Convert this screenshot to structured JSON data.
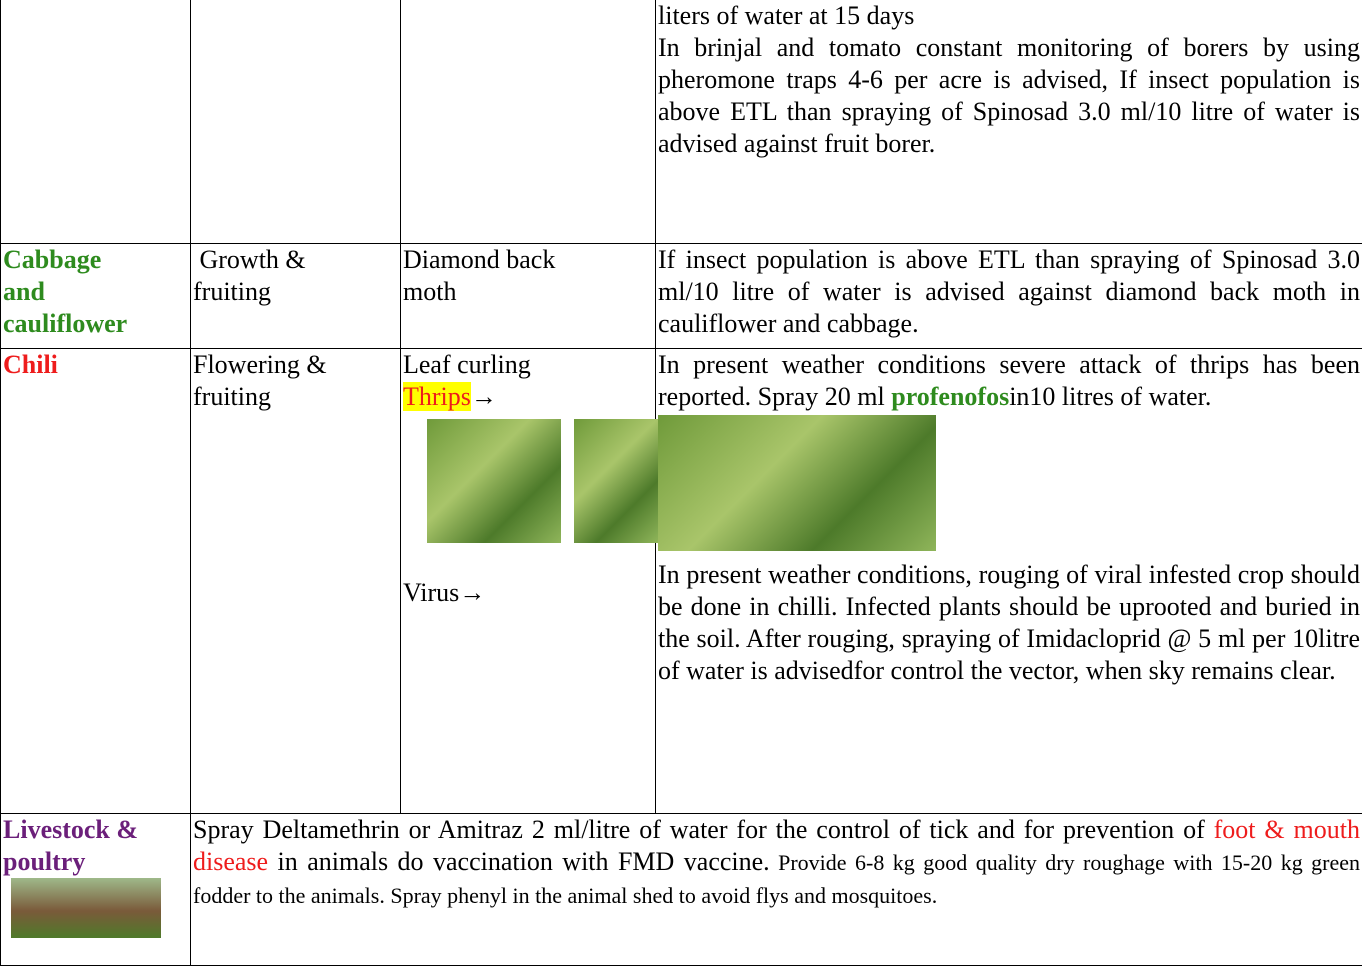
{
  "table": {
    "rows": [
      {
        "advice": [
          "liters of water at 15 days",
          "In brinjal and tomato constant monitoring of borers by using pheromone traps 4-6 per acre is advised, If insect population is above ETL than spraying of Spinosad 3.0 ml/10 litre of water is advised against fruit borer."
        ]
      },
      {
        "crop": [
          "Cabbage",
          "and",
          "cauliflower"
        ],
        "stage": [
          "Growth &",
          "fruiting"
        ],
        "pest": [
          "Diamond back",
          "moth"
        ],
        "advice": [
          "If insect population is above ETL than spraying of Spinosad 3.0 ml/10 litre of water is advised against diamond back moth in cauliflower and cabbage."
        ]
      },
      {
        "crop": [
          "Chili"
        ],
        "stage": [
          "Flowering &",
          "fruiting"
        ],
        "pest": {
          "leaf": "Leaf curling",
          "thrips": "Thrips",
          "arrow": "→",
          "virus": "Virus→"
        },
        "advice": {
          "thrips": [
            "In present weather conditions severe attack of thrips has been reported. Spray 20 ml ",
            "profenofos",
            "in10 litres of water."
          ],
          "virus": "In present weather conditions, rouging of viral infested crop should be done in chilli. Infected plants should be uprooted and buried in the soil. After rouging, spraying of Imidacloprid @ 5 ml per 10litre of water is advisedfor control the vector, when sky remains clear."
        }
      },
      {
        "crop": [
          "Livestock &",
          "poultry"
        ],
        "advice": [
          "Spray Deltamethrin or Amitraz 2 ml/litre of water for the control of tick and for prevention of ",
          "foot & mouth disease",
          " in animals do vaccination with FMD vaccine.",
          " Provide 6-8 kg good quality dry roughage with 15-20 kg green fodder to the animals. Spray phenyl in the animal shed to avoid flys and mosquitoes."
        ]
      }
    ]
  }
}
